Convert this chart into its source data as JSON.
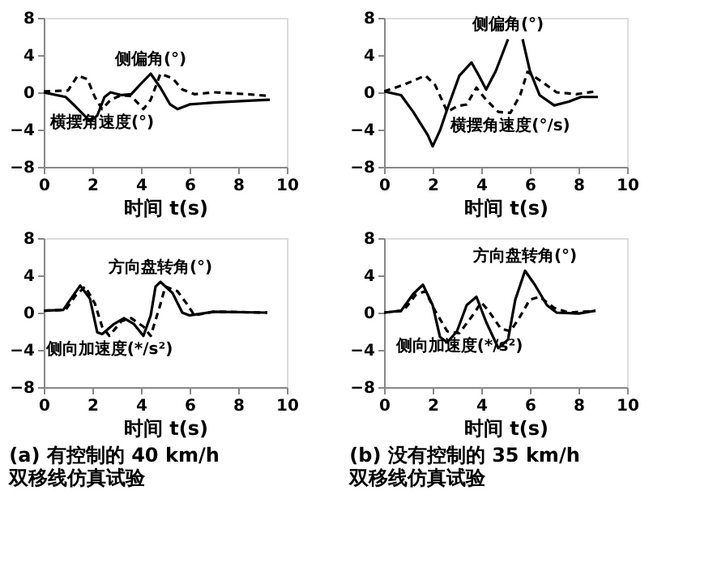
{
  "chart_data": [
    {
      "type": "line",
      "xlabel": "时间 t(s)",
      "xlim": [
        0,
        10
      ],
      "ylim": [
        -8,
        8
      ],
      "xticks": [
        0,
        2,
        4,
        6,
        8,
        10
      ],
      "yticks": [
        -8,
        -4,
        0,
        4,
        8
      ],
      "series": [
        {
          "name": "侧偏角(°)",
          "color": "#000000",
          "line_style": "solid",
          "x": [
            0,
            0.9,
            1.3,
            1.9,
            2.2,
            2.5,
            2.75,
            3.2,
            3.6,
            3.95,
            4.4,
            4.8,
            5.2,
            5.5,
            6.0,
            7.0,
            8.4,
            9.3
          ],
          "values": [
            0,
            -0.5,
            -1.5,
            -3.1,
            -2.5,
            -0.5,
            0,
            -0.3,
            -0.2,
            0.8,
            2.0,
            0.5,
            -1.3,
            -1.8,
            -1.3,
            -1.1,
            -0.9,
            -0.8
          ]
        },
        {
          "name": "横摆角速度(°)",
          "color": "#000000",
          "line_style": "dashed",
          "x": [
            0,
            1.0,
            1.4,
            1.8,
            2.1,
            2.4,
            2.75,
            3.2,
            3.6,
            4.1,
            4.4,
            4.8,
            5.3,
            5.7,
            6.2,
            7.0,
            8.4,
            9.3
          ],
          "values": [
            0.1,
            0.2,
            1.8,
            1.4,
            -0.5,
            -1.8,
            -0.8,
            -0.3,
            -0.4,
            -1.8,
            -0.8,
            2.0,
            1.5,
            0.3,
            -0.2,
            0,
            -0.2,
            -0.4
          ]
        }
      ]
    },
    {
      "type": "line",
      "xlabel": "时间 t(s)",
      "xlim": [
        0,
        10
      ],
      "ylim": [
        -8,
        8
      ],
      "xticks": [
        0,
        2,
        4,
        6,
        8,
        10
      ],
      "yticks": [
        -8,
        -4,
        0,
        4,
        8
      ],
      "series": [
        {
          "name": "侧偏角(°)",
          "color": "#000000",
          "line_style": "solid",
          "x": [
            0,
            0.7,
            1.2,
            1.8,
            2.0,
            2.3,
            2.6,
            3.1,
            3.6,
            3.9,
            4.2,
            4.6,
            5.1,
            5.4,
            5.7,
            6.0,
            6.4,
            7.0,
            7.6,
            8.1,
            8.8
          ],
          "values": [
            0.1,
            -0.3,
            -2.1,
            -4.6,
            -5.8,
            -4.1,
            -1.8,
            1.8,
            3.2,
            1.8,
            0.3,
            2.3,
            5.7,
            null,
            5.7,
            2.3,
            -0.3,
            -1.4,
            -1.0,
            -0.5,
            -0.5
          ]
        },
        {
          "name": "横摆角速度(°/s)",
          "color": "#000000",
          "line_style": "dashed",
          "x": [
            0,
            0.8,
            1.7,
            2.1,
            2.6,
            3.0,
            3.4,
            3.8,
            4.2,
            4.7,
            5.2,
            5.6,
            5.9,
            6.4,
            7.1,
            7.9,
            8.7
          ],
          "values": [
            0.1,
            0.8,
            1.8,
            0.8,
            -2.1,
            -1.5,
            -1.3,
            0.5,
            -0.8,
            -2.1,
            -2.2,
            -0.3,
            2.2,
            1.3,
            0,
            -0.2,
            0.1
          ]
        }
      ]
    },
    {
      "type": "line",
      "xlabel": "时间 t(s)",
      "xlim": [
        0,
        10
      ],
      "ylim": [
        -8,
        8
      ],
      "xticks": [
        0,
        2,
        4,
        6,
        8,
        10
      ],
      "yticks": [
        -8,
        -4,
        0,
        4,
        8
      ],
      "annotations": [
        "(a) 有控制的 40 km/h",
        "双移线仿真试验"
      ],
      "series": [
        {
          "name": "方向盘转角(°)",
          "color": "#000000",
          "line_style": "solid",
          "x": [
            0,
            0.8,
            1.2,
            1.5,
            1.9,
            2.2,
            2.4,
            2.9,
            3.3,
            3.7,
            4.1,
            4.4,
            4.6,
            4.8,
            5.3,
            5.7,
            6.0,
            7.0,
            9.2
          ],
          "values": [
            0.2,
            0.3,
            1.8,
            2.9,
            1.5,
            -2.1,
            -2.3,
            -1.2,
            -0.6,
            -1.2,
            -2.5,
            -0.3,
            2.8,
            3.3,
            2.1,
            0,
            -0.3,
            0.1,
            0
          ]
        },
        {
          "name": "侧向加速度(*/s²)",
          "color": "#000000",
          "line_style": "dashed",
          "x": [
            0,
            0.9,
            1.3,
            1.7,
            2.1,
            2.4,
            2.7,
            3.2,
            3.6,
            4.1,
            4.4,
            4.8,
            5.0,
            5.5,
            5.9,
            6.2,
            7.0,
            9.2
          ],
          "values": [
            0.2,
            0.3,
            1.8,
            2.8,
            1.0,
            -1.5,
            -2.5,
            -0.9,
            -0.6,
            -1.5,
            -2.5,
            0.9,
            2.8,
            2.3,
            0.9,
            -0.3,
            0.1,
            0
          ]
        }
      ]
    },
    {
      "type": "line",
      "xlabel": "时间 t(s)",
      "xlim": [
        0,
        10
      ],
      "ylim": [
        -8,
        8
      ],
      "xticks": [
        0,
        2,
        4,
        6,
        8,
        10
      ],
      "yticks": [
        -8,
        -4,
        0,
        4,
        8
      ],
      "annotations": [
        "(b) 没有控制的 35 km/h",
        "双移线仿真试验"
      ],
      "series": [
        {
          "name": "方向盘转角(°)",
          "color": "#000000",
          "line_style": "solid",
          "x": [
            0,
            0.7,
            1.2,
            1.6,
            2.0,
            2.3,
            2.6,
            3.0,
            3.4,
            3.8,
            4.2,
            4.7,
            5.1,
            5.4,
            5.8,
            6.2,
            6.7,
            7.1,
            8.0,
            8.7
          ],
          "values": [
            0,
            0.2,
            2.0,
            3.0,
            0.8,
            -2.6,
            -3.2,
            -2.0,
            0.8,
            1.7,
            -1.0,
            -3.8,
            -2.9,
            1.4,
            4.5,
            3.0,
            0.8,
            0,
            -0.1,
            0.2
          ]
        },
        {
          "name": "侧向加速度(*/s²)",
          "color": "#000000",
          "line_style": "dashed",
          "x": [
            0,
            0.8,
            1.3,
            1.7,
            2.1,
            2.6,
            3.1,
            3.7,
            4.0,
            4.3,
            4.8,
            5.2,
            5.6,
            6.0,
            6.4,
            7.0,
            7.6,
            8.7
          ],
          "values": [
            0,
            0.2,
            1.9,
            2.3,
            0.2,
            -2.0,
            -2.2,
            -0.1,
            1.1,
            0.2,
            -1.7,
            -2.0,
            -0.4,
            1.4,
            1.7,
            0.5,
            0,
            0.2
          ]
        }
      ]
    }
  ]
}
